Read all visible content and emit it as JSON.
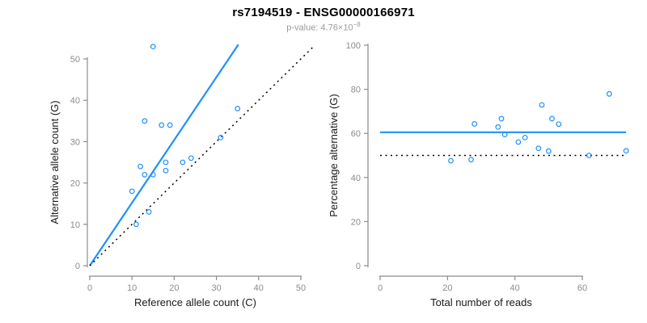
{
  "header": {
    "title": "rs7194519 - ENSG00000166971",
    "subtitle_prefix": "p-value: ",
    "p_value_mantissa": "4.76",
    "p_value_times": "×10",
    "p_value_exponent": "−8"
  },
  "colors": {
    "accent": "#1E90FF",
    "identity": "#000000",
    "axis": "#8c8c8c",
    "tick_label": "#8c8c8c",
    "axis_label": "#1a1a1a"
  },
  "chart_data": [
    {
      "type": "scatter",
      "name": "allele-count-scatter",
      "xlabel": "Reference allele count (C)",
      "ylabel": "Alternative allele count (G)",
      "xlim": [
        0,
        50
      ],
      "ylim": [
        0,
        50
      ],
      "xticks": [
        0,
        10,
        20,
        30,
        40,
        50
      ],
      "yticks": [
        0,
        10,
        20,
        30,
        40,
        50
      ],
      "grid": false,
      "points": [
        [
          15,
          53
        ],
        [
          13,
          35
        ],
        [
          17,
          34
        ],
        [
          19,
          34
        ],
        [
          35,
          38
        ],
        [
          31,
          31
        ],
        [
          24,
          26
        ],
        [
          22,
          25
        ],
        [
          18,
          25
        ],
        [
          18,
          23
        ],
        [
          12,
          24
        ],
        [
          13,
          22
        ],
        [
          15,
          22
        ],
        [
          10,
          18
        ],
        [
          14,
          13
        ],
        [
          11,
          10
        ]
      ],
      "fit_line": {
        "x1": 0,
        "y1": 0,
        "x2": 35.2,
        "y2": 53.5
      },
      "identity_line": {
        "x1": 0,
        "y1": 0,
        "x2": 53,
        "y2": 53
      }
    },
    {
      "type": "scatter",
      "name": "percentage-alternative-scatter",
      "xlabel": "Total number of reads",
      "ylabel": "Percentage alternative (G)",
      "xlim": [
        0,
        60
      ],
      "ylim": [
        0,
        100
      ],
      "xticks": [
        0,
        20,
        40,
        60
      ],
      "yticks": [
        0,
        20,
        40,
        60,
        80,
        100
      ],
      "grid": false,
      "points": [
        [
          68,
          77.9
        ],
        [
          48,
          72.9
        ],
        [
          51,
          66.7
        ],
        [
          53,
          64.2
        ],
        [
          73,
          52.1
        ],
        [
          62,
          50.0
        ],
        [
          50,
          52.0
        ],
        [
          47,
          53.2
        ],
        [
          43,
          58.1
        ],
        [
          41,
          56.1
        ],
        [
          36,
          66.7
        ],
        [
          35,
          62.9
        ],
        [
          37,
          59.5
        ],
        [
          28,
          64.3
        ],
        [
          27,
          48.1
        ],
        [
          21,
          47.6
        ]
      ],
      "fit_line": {
        "x1": 0,
        "y1": 60.5,
        "x2": 73,
        "y2": 60.5
      },
      "identity_line": {
        "x1": 0,
        "y1": 50,
        "x2": 73,
        "y2": 50
      }
    }
  ]
}
